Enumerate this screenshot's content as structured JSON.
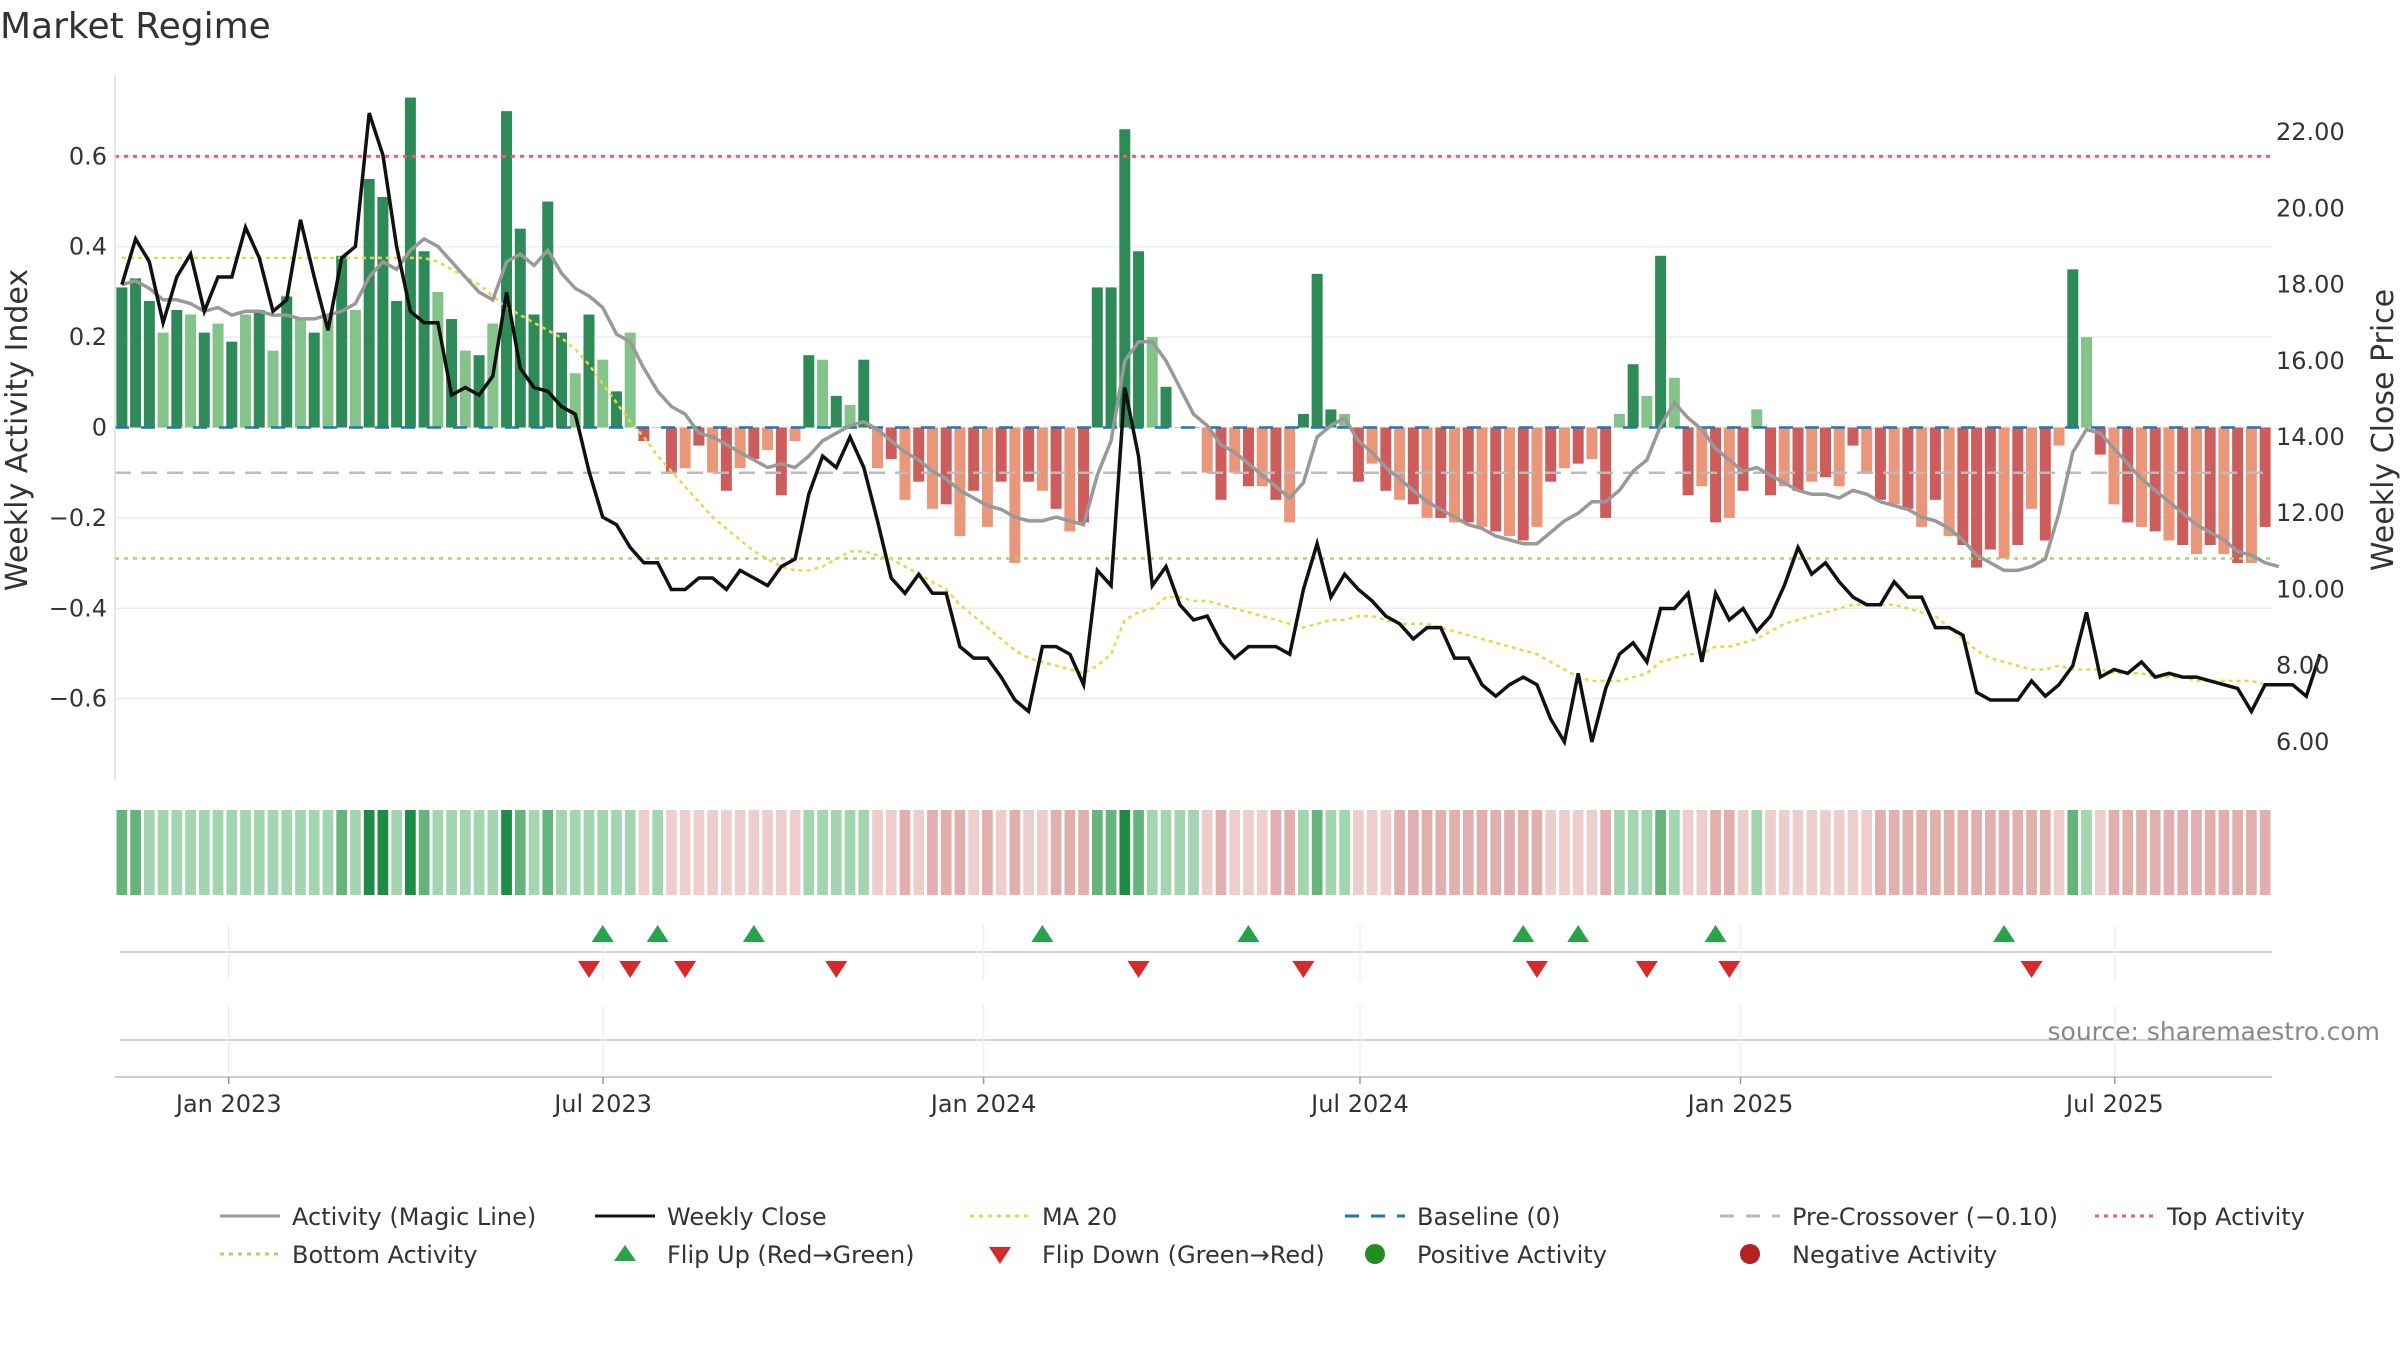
{
  "chart_data": {
    "type": "bar",
    "title": "Market Regime",
    "source": "source: sharemaestro.com",
    "ylabel_left": "Weekly Activity Index",
    "ylabel_right": "Weekly Close Price",
    "ylim_left": [
      -0.78,
      0.78
    ],
    "ylim_right": [
      5.0,
      23.5
    ],
    "yticks_left": [
      {
        "value": 0.6,
        "label": "0.6"
      },
      {
        "value": 0.4,
        "label": "0.4"
      },
      {
        "value": 0.2,
        "label": "0.2"
      },
      {
        "value": 0,
        "label": "0"
      },
      {
        "value": -0.2,
        "label": "−0.2"
      },
      {
        "value": -0.4,
        "label": "−0.4"
      },
      {
        "value": -0.6,
        "label": "−0.6"
      }
    ],
    "yticks_right": [
      {
        "value": 22,
        "label": "22.00"
      },
      {
        "value": 20,
        "label": "20.00"
      },
      {
        "value": 18,
        "label": "18.00"
      },
      {
        "value": 16,
        "label": "16.00"
      },
      {
        "value": 14,
        "label": "14.00"
      },
      {
        "value": 12,
        "label": "12.00"
      },
      {
        "value": 10,
        "label": "10.00"
      },
      {
        "value": 8,
        "label": "8.00"
      },
      {
        "value": 6,
        "label": "6.00"
      }
    ],
    "x_start": "2022-11-07",
    "x_end": "2025-09-15",
    "xticks": [
      {
        "date": "2023-01-01",
        "label": "Jan 2023"
      },
      {
        "date": "2023-07-01",
        "label": "Jul 2023"
      },
      {
        "date": "2024-01-01",
        "label": "Jan 2024"
      },
      {
        "date": "2024-07-01",
        "label": "Jul 2024"
      },
      {
        "date": "2025-01-01",
        "label": "Jan 2025"
      },
      {
        "date": "2025-07-01",
        "label": "Jul 2025"
      }
    ],
    "levels": {
      "top": 0.6,
      "bottom": -0.29,
      "pre_crossover": -0.1,
      "baseline": 0
    },
    "activity": [
      0.31,
      0.33,
      0.28,
      0.21,
      0.26,
      0.25,
      0.21,
      0.23,
      0.19,
      0.25,
      0.26,
      0.17,
      0.29,
      0.24,
      0.21,
      0.25,
      0.38,
      0.26,
      0.55,
      0.51,
      0.28,
      0.73,
      0.39,
      0.3,
      0.24,
      0.17,
      0.16,
      0.23,
      0.7,
      0.44,
      0.25,
      0.5,
      0.21,
      0.12,
      0.25,
      0.15,
      0.08,
      0.21,
      -0.03,
      0.0,
      -0.1,
      -0.09,
      -0.04,
      -0.1,
      -0.14,
      -0.09,
      -0.07,
      -0.05,
      -0.15,
      -0.03,
      0.16,
      0.15,
      0.07,
      0.05,
      0.15,
      -0.09,
      -0.07,
      -0.16,
      -0.12,
      -0.18,
      -0.17,
      -0.24,
      -0.14,
      -0.22,
      -0.12,
      -0.3,
      -0.12,
      -0.14,
      -0.18,
      -0.23,
      -0.21,
      0.31,
      0.31,
      0.66,
      0.39,
      0.2,
      0.09,
      0.0,
      0.0,
      -0.1,
      -0.16,
      -0.1,
      -0.13,
      -0.13,
      -0.16,
      -0.21,
      0.03,
      0.34,
      0.04,
      0.03,
      -0.12,
      -0.08,
      -0.14,
      -0.16,
      -0.17,
      -0.2,
      -0.2,
      -0.21,
      -0.21,
      -0.22,
      -0.23,
      -0.24,
      -0.25,
      -0.22,
      -0.12,
      -0.09,
      -0.08,
      -0.07,
      -0.2,
      0.03,
      0.14,
      0.07,
      0.38,
      0.11,
      -0.15,
      -0.13,
      -0.21,
      -0.2,
      -0.14,
      0.04,
      -0.15,
      -0.13,
      -0.14,
      -0.12,
      -0.11,
      -0.13,
      -0.04,
      -0.1,
      -0.16,
      -0.17,
      -0.18,
      -0.22,
      -0.16,
      -0.24,
      -0.26,
      -0.31,
      -0.27,
      -0.29,
      -0.26,
      -0.18,
      -0.25,
      -0.04,
      0.35,
      0.2,
      -0.06,
      -0.17,
      -0.21,
      -0.22,
      -0.23,
      -0.25,
      -0.26,
      -0.28,
      -0.26,
      -0.28,
      -0.3,
      -0.3,
      -0.22
    ],
    "weekly_close": [
      18.0,
      19.2,
      18.6,
      17.0,
      18.2,
      18.8,
      17.3,
      18.2,
      18.2,
      19.5,
      18.7,
      17.3,
      17.6,
      19.7,
      18.2,
      16.8,
      18.7,
      19.0,
      22.5,
      21.4,
      19.0,
      17.3,
      17.0,
      17.0,
      15.1,
      15.3,
      15.1,
      15.6,
      17.8,
      15.8,
      15.3,
      15.2,
      14.8,
      14.6,
      13.1,
      11.9,
      11.7,
      11.1,
      10.7,
      10.7,
      10.0,
      10.0,
      10.3,
      10.3,
      10.0,
      10.5,
      10.3,
      10.1,
      10.6,
      10.8,
      12.5,
      13.5,
      13.2,
      14.0,
      13.2,
      11.8,
      10.3,
      9.9,
      10.4,
      9.9,
      9.9,
      8.5,
      8.2,
      8.2,
      7.7,
      7.1,
      6.8,
      8.5,
      8.5,
      8.3,
      7.5,
      10.5,
      10.1,
      15.3,
      13.5,
      10.1,
      10.6,
      9.6,
      9.2,
      9.3,
      8.6,
      8.2,
      8.5,
      8.5,
      8.5,
      8.3,
      10.0,
      11.2,
      9.8,
      10.4,
      10.0,
      9.7,
      9.3,
      9.1,
      8.7,
      9.0,
      9.0,
      8.2,
      8.2,
      7.5,
      7.2,
      7.5,
      7.7,
      7.5,
      6.6,
      6.0,
      7.8,
      6.0,
      7.4,
      8.3,
      8.6,
      8.1,
      9.5,
      9.5,
      9.9,
      8.1,
      9.9,
      9.2,
      9.5,
      8.9,
      9.3,
      10.1,
      11.1,
      10.4,
      10.7,
      10.2,
      9.8,
      9.6,
      9.6,
      10.2,
      9.8,
      9.8,
      9.0,
      9.0,
      8.8,
      7.3,
      7.1,
      7.1,
      7.1,
      7.6,
      7.2,
      7.5,
      8.0,
      9.4,
      7.7,
      7.9,
      7.8,
      8.1,
      7.7,
      7.8,
      7.7,
      7.7,
      7.6,
      7.5,
      7.4,
      6.8,
      7.5,
      7.5,
      7.5,
      7.2,
      8.3
    ],
    "magic_line_note": "",
    "magic_line": [
      18.0,
      18.1,
      17.9,
      17.6,
      17.6,
      17.5,
      17.3,
      17.4,
      17.2,
      17.3,
      17.3,
      17.2,
      17.2,
      17.1,
      17.1,
      17.2,
      17.3,
      17.5,
      18.2,
      18.6,
      18.4,
      18.9,
      19.2,
      19.0,
      18.6,
      18.2,
      17.8,
      17.6,
      18.6,
      18.8,
      18.5,
      18.9,
      18.3,
      17.9,
      17.7,
      17.4,
      16.7,
      16.5,
      15.8,
      15.2,
      14.8,
      14.6,
      14.1,
      14.0,
      13.8,
      13.6,
      13.4,
      13.2,
      13.3,
      13.2,
      13.5,
      13.9,
      14.1,
      14.3,
      14.4,
      14.2,
      13.9,
      13.6,
      13.4,
      13.1,
      12.9,
      12.6,
      12.4,
      12.2,
      12.1,
      11.9,
      11.8,
      11.8,
      11.9,
      11.8,
      11.7,
      13.0,
      13.9,
      16.0,
      16.5,
      16.5,
      16.0,
      15.3,
      14.6,
      14.3,
      13.8,
      13.6,
      13.3,
      13.0,
      12.7,
      12.4,
      12.8,
      14.0,
      14.3,
      14.5,
      13.9,
      13.6,
      13.2,
      12.9,
      12.6,
      12.3,
      12.1,
      11.9,
      11.7,
      11.6,
      11.4,
      11.3,
      11.2,
      11.2,
      11.5,
      11.8,
      12.0,
      12.3,
      12.3,
      12.6,
      13.1,
      13.4,
      14.3,
      14.9,
      14.5,
      14.2,
      13.7,
      13.4,
      13.1,
      13.2,
      13.0,
      12.8,
      12.6,
      12.5,
      12.5,
      12.4,
      12.6,
      12.5,
      12.3,
      12.2,
      12.1,
      11.9,
      11.8,
      11.6,
      11.3,
      10.9,
      10.7,
      10.5,
      10.5,
      10.6,
      10.8,
      12.0,
      13.6,
      14.2,
      14.1,
      13.7,
      13.3,
      12.9,
      12.6,
      12.3,
      12.0,
      11.7,
      11.5,
      11.3,
      11.0,
      10.9,
      10.7,
      10.6
    ],
    "ma20": [
      18.7,
      18.7,
      18.7,
      18.7,
      18.7,
      18.7,
      18.7,
      18.7,
      18.7,
      18.7,
      18.7,
      18.7,
      18.7,
      18.7,
      18.7,
      18.7,
      18.7,
      18.7,
      18.7,
      18.7,
      18.7,
      18.7,
      18.7,
      18.6,
      18.4,
      18.2,
      18.0,
      17.7,
      17.4,
      17.2,
      17.0,
      16.8,
      16.6,
      16.3,
      15.9,
      15.4,
      14.9,
      14.4,
      14.0,
      13.5,
      13.1,
      12.7,
      12.3,
      11.9,
      11.6,
      11.3,
      11.0,
      10.8,
      10.6,
      10.5,
      10.5,
      10.6,
      10.8,
      11.0,
      11.0,
      10.9,
      10.8,
      10.6,
      10.4,
      10.2,
      10.0,
      9.6,
      9.3,
      9.0,
      8.7,
      8.4,
      8.2,
      8.1,
      8.0,
      7.9,
      7.8,
      8.0,
      8.3,
      9.2,
      9.4,
      9.5,
      9.8,
      9.8,
      9.7,
      9.7,
      9.6,
      9.5,
      9.4,
      9.3,
      9.2,
      9.1,
      9.0,
      9.1,
      9.2,
      9.2,
      9.3,
      9.3,
      9.2,
      9.1,
      9.1,
      9.1,
      9.0,
      8.9,
      8.8,
      8.7,
      8.6,
      8.5,
      8.4,
      8.3,
      8.1,
      7.9,
      7.7,
      7.6,
      7.6,
      7.6,
      7.7,
      7.8,
      8.1,
      8.2,
      8.3,
      8.3,
      8.5,
      8.5,
      8.6,
      8.7,
      8.9,
      9.1,
      9.2,
      9.3,
      9.4,
      9.5,
      9.6,
      9.6,
      9.6,
      9.6,
      9.5,
      9.4,
      9.3,
      9.0,
      8.7,
      8.4,
      8.2,
      8.1,
      8.0,
      7.9,
      7.9,
      8.0,
      7.9,
      7.9,
      7.9,
      7.8,
      7.8,
      7.8,
      7.7,
      7.7,
      7.7,
      7.6,
      7.6,
      7.6,
      7.6,
      7.6,
      7.5,
      7.5
    ],
    "flip_up_weeks": [
      35,
      39,
      46,
      67,
      82,
      102,
      106,
      116,
      137
    ],
    "flip_down_weeks": [
      34,
      37,
      41,
      52,
      74,
      86,
      103,
      111,
      117,
      139
    ],
    "series": [
      {
        "name": "Activity (Magic Line)",
        "color": "#999999",
        "style": "solid"
      },
      {
        "name": "Weekly Close",
        "color": "#111111",
        "style": "solid"
      },
      {
        "name": "MA 20",
        "color": "#e3d84a",
        "style": "dotted"
      },
      {
        "name": "Baseline (0)",
        "color": "#1f77b4",
        "style": "dashed"
      },
      {
        "name": "Pre-Crossover (−0.10)",
        "color": "#bbbbbb",
        "style": "dashed"
      },
      {
        "name": "Top Activity",
        "color": "#ef5b7a",
        "style": "dotted"
      },
      {
        "name": "Bottom Activity",
        "color": "#a9d66b",
        "style": "dotted"
      },
      {
        "name": "Flip Up (Red→Green)",
        "color": "#27a34a",
        "marker": "triangle-up"
      },
      {
        "name": "Flip Down (Green→Red)",
        "color": "#d62b2b",
        "marker": "triangle-down"
      },
      {
        "name": "Positive Activity",
        "color": "#228b22",
        "marker": "circle"
      },
      {
        "name": "Negative Activity",
        "color": "#b22222",
        "marker": "circle"
      }
    ],
    "colors": {
      "pos_strong": "#2e8b57",
      "pos_light": "#84c48a",
      "neg_strong": "#cd5c5c",
      "neg_light": "#e9967a"
    },
    "legend_position": "bottom"
  }
}
